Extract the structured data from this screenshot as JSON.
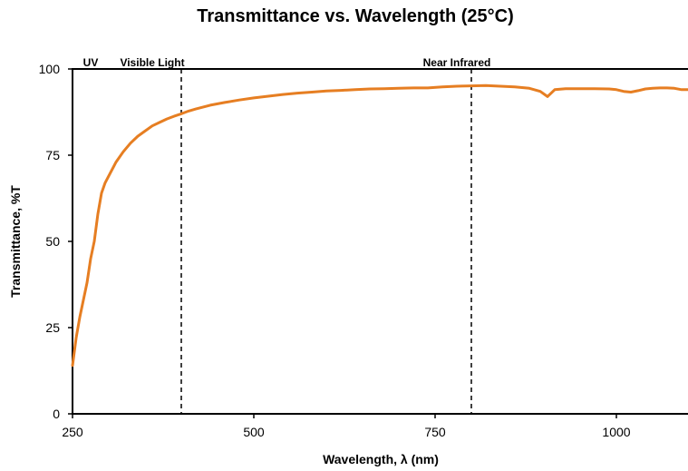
{
  "chart_data": {
    "type": "line",
    "title": "Transmittance vs. Wavelength (25°C)",
    "xlabel": "Wavelength, λ (nm)",
    "ylabel": "Transmittance, %T",
    "xlim": [
      250,
      1100
    ],
    "ylim": [
      0,
      100
    ],
    "x_ticks": [
      250,
      500,
      750,
      1000
    ],
    "y_ticks": [
      0,
      25,
      50,
      75,
      100
    ],
    "grid": false,
    "line_color": "#E67E22",
    "region_labels": [
      {
        "text": "UV",
        "x": 275
      },
      {
        "text": "Visible Light",
        "x": 360
      },
      {
        "text": "Near Infrared",
        "x": 780
      }
    ],
    "dividers": [
      400,
      800
    ],
    "series": [
      {
        "x": [
          250,
          255,
          260,
          265,
          270,
          275,
          280,
          285,
          290,
          295,
          300,
          310,
          320,
          330,
          340,
          350,
          360,
          370,
          380,
          390,
          400,
          410,
          420,
          440,
          460,
          480,
          500,
          520,
          540,
          560,
          580,
          600,
          620,
          640,
          660,
          680,
          700,
          720,
          740,
          760,
          780,
          800,
          820,
          840,
          860,
          880,
          895,
          905,
          915,
          930,
          950,
          970,
          990,
          1000,
          1010,
          1020,
          1030,
          1040,
          1050,
          1060,
          1070,
          1080,
          1090,
          1100
        ],
        "y": [
          14,
          22,
          28,
          33,
          38,
          45,
          50,
          58,
          64,
          67,
          69,
          73,
          76,
          78.5,
          80.5,
          82,
          83.5,
          84.5,
          85.5,
          86.3,
          87,
          87.8,
          88.4,
          89.5,
          90.3,
          91,
          91.6,
          92.1,
          92.6,
          93,
          93.3,
          93.6,
          93.8,
          94,
          94.2,
          94.3,
          94.4,
          94.5,
          94.5,
          94.8,
          95,
          95.1,
          95.2,
          95,
          94.8,
          94.4,
          93.5,
          92,
          94,
          94.3,
          94.3,
          94.3,
          94.2,
          94,
          93.5,
          93.3,
          93.7,
          94.2,
          94.4,
          94.5,
          94.5,
          94.4,
          94,
          94
        ]
      }
    ]
  }
}
